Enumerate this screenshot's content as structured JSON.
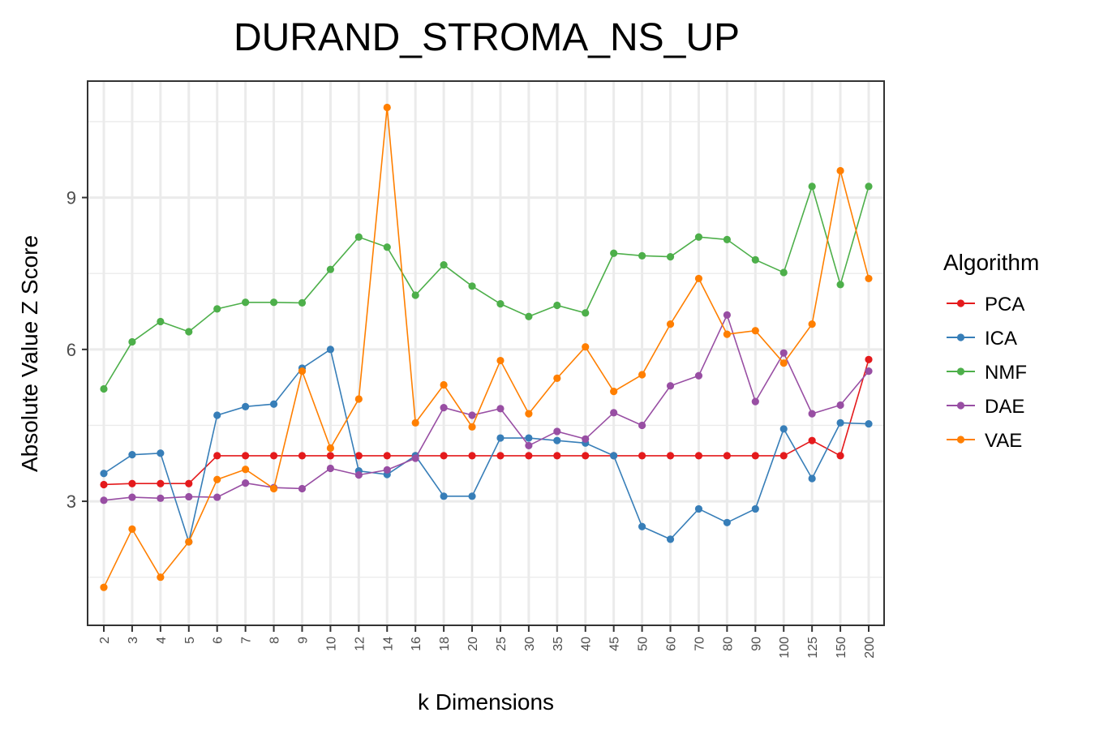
{
  "chart_data": {
    "type": "line",
    "title": "DURAND_STROMA_NS_UP",
    "xlabel": "k Dimensions",
    "ylabel": "Absolute Value Z Score",
    "x_categories": [
      "2",
      "3",
      "4",
      "5",
      "6",
      "7",
      "8",
      "9",
      "10",
      "12",
      "14",
      "16",
      "18",
      "20",
      "25",
      "30",
      "35",
      "40",
      "45",
      "50",
      "60",
      "70",
      "80",
      "90",
      "100",
      "125",
      "150",
      "200"
    ],
    "ylim": [
      0.55,
      11.3
    ],
    "yticks": [
      3,
      6,
      9
    ],
    "ytick_labels": [
      "3",
      "6",
      "9"
    ],
    "grid": true,
    "legend_position": "right",
    "legend": {
      "title": "Algorithm"
    },
    "series": [
      {
        "name": "PCA",
        "color": "#E41A1C",
        "values": [
          3.33,
          3.35,
          3.35,
          3.35,
          3.9,
          3.9,
          3.9,
          3.9,
          3.9,
          3.9,
          3.9,
          3.9,
          3.9,
          3.9,
          3.9,
          3.9,
          3.9,
          3.9,
          3.9,
          3.9,
          3.9,
          3.9,
          3.9,
          3.9,
          3.9,
          4.2,
          3.9,
          5.8
        ]
      },
      {
        "name": "ICA",
        "color": "#377EB8",
        "values": [
          3.55,
          3.92,
          3.95,
          2.2,
          4.7,
          4.87,
          4.92,
          5.63,
          6.0,
          3.6,
          3.53,
          3.9,
          3.1,
          3.1,
          4.25,
          4.25,
          4.2,
          4.15,
          3.9,
          2.5,
          2.25,
          2.85,
          2.58,
          2.85,
          4.43,
          3.45,
          4.55,
          4.53
        ]
      },
      {
        "name": "NMF",
        "color": "#4DAF4A",
        "values": [
          5.22,
          6.15,
          6.55,
          6.35,
          6.8,
          6.93,
          6.93,
          6.92,
          7.58,
          8.22,
          8.02,
          7.07,
          7.67,
          7.25,
          6.9,
          6.65,
          6.87,
          6.72,
          7.9,
          7.85,
          7.83,
          8.22,
          8.17,
          7.77,
          7.52,
          9.22,
          7.28,
          9.22
        ]
      },
      {
        "name": "DAE",
        "color": "#984EA3",
        "values": [
          3.02,
          3.08,
          3.06,
          3.09,
          3.08,
          3.36,
          3.27,
          3.25,
          3.65,
          3.52,
          3.62,
          3.85,
          4.85,
          4.7,
          4.83,
          4.1,
          4.38,
          4.23,
          4.75,
          4.5,
          5.28,
          5.48,
          6.68,
          4.97,
          5.93,
          4.73,
          4.9,
          5.57
        ]
      },
      {
        "name": "VAE",
        "color": "#FF7F00",
        "values": [
          1.3,
          2.45,
          1.5,
          2.2,
          3.43,
          3.63,
          3.25,
          5.57,
          4.05,
          5.02,
          10.78,
          4.55,
          5.3,
          4.47,
          5.78,
          4.73,
          5.43,
          6.05,
          5.17,
          5.5,
          6.5,
          7.4,
          6.3,
          6.37,
          5.73,
          6.5,
          9.53,
          7.4
        ]
      }
    ]
  }
}
